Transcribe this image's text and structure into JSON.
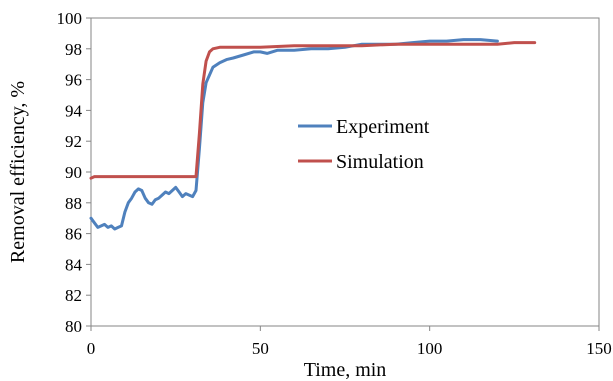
{
  "chart_data": {
    "type": "line",
    "xlabel": "Time, min",
    "ylabel": "Removal efficiency, %",
    "xlim": [
      0,
      150
    ],
    "ylim": [
      80,
      100
    ],
    "x_ticks": [
      "0",
      "50",
      "100",
      "150"
    ],
    "y_ticks": [
      "80",
      "82",
      "84",
      "86",
      "88",
      "90",
      "92",
      "94",
      "96",
      "98",
      "100"
    ],
    "grid": false,
    "legend_position": "center",
    "series": [
      {
        "name": "Experiment",
        "color": "#4f81bd",
        "x": [
          0,
          1,
          2,
          3,
          4,
          5,
          6,
          7,
          8,
          9,
          10,
          11,
          12,
          13,
          14,
          15,
          16,
          17,
          18,
          19,
          20,
          21,
          22,
          23,
          24,
          25,
          26,
          27,
          28,
          29,
          30,
          31,
          32,
          33,
          34,
          35,
          36,
          38,
          40,
          42,
          45,
          48,
          50,
          52,
          55,
          60,
          65,
          70,
          75,
          80,
          85,
          90,
          95,
          100,
          105,
          110,
          115,
          120
        ],
        "values": [
          87.0,
          86.7,
          86.4,
          86.5,
          86.6,
          86.4,
          86.5,
          86.3,
          86.4,
          86.5,
          87.4,
          88.0,
          88.3,
          88.7,
          88.9,
          88.8,
          88.3,
          88.0,
          87.9,
          88.2,
          88.3,
          88.5,
          88.7,
          88.6,
          88.8,
          89.0,
          88.7,
          88.4,
          88.6,
          88.5,
          88.4,
          88.8,
          91.5,
          94.5,
          95.8,
          96.3,
          96.8,
          97.1,
          97.3,
          97.4,
          97.6,
          97.8,
          97.8,
          97.7,
          97.9,
          97.9,
          98.0,
          98.0,
          98.1,
          98.3,
          98.3,
          98.3,
          98.4,
          98.5,
          98.5,
          98.6,
          98.6,
          98.5
        ]
      },
      {
        "name": "Simulation",
        "color": "#c0504d",
        "x": [
          0,
          1,
          30,
          31,
          32,
          33,
          34,
          35,
          36,
          38,
          40,
          50,
          60,
          70,
          80,
          90,
          100,
          110,
          120,
          125,
          130,
          131
        ],
        "values": [
          89.6,
          89.7,
          89.7,
          89.7,
          92.5,
          95.7,
          97.2,
          97.8,
          98.0,
          98.1,
          98.1,
          98.1,
          98.2,
          98.2,
          98.2,
          98.3,
          98.3,
          98.3,
          98.3,
          98.4,
          98.4,
          98.4
        ]
      }
    ]
  }
}
